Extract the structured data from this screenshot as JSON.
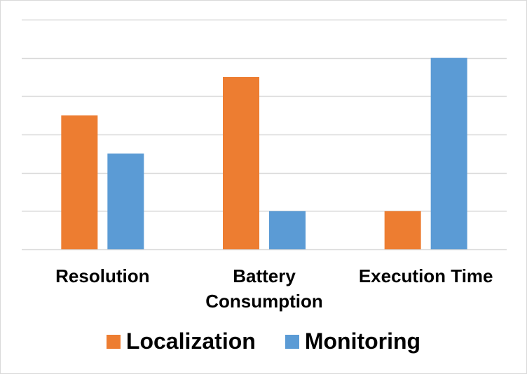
{
  "chart_data": {
    "type": "bar",
    "categories": [
      "Resolution",
      "Battery Consumption",
      "Execution Time"
    ],
    "category_lines": [
      [
        "Resolution"
      ],
      [
        "Battery",
        "Consumption"
      ],
      [
        "Execution Time"
      ]
    ],
    "series": [
      {
        "name": "Localization",
        "color": "#ED7D31",
        "values": [
          3.5,
          4.5,
          1
        ]
      },
      {
        "name": "Monitoring",
        "color": "#5B9BD5",
        "values": [
          2.5,
          1,
          5
        ]
      }
    ],
    "ylim": [
      0,
      6
    ],
    "yticks": [
      0,
      1,
      2,
      3,
      4,
      5,
      6
    ],
    "grid": true,
    "legend_position": "bottom"
  }
}
